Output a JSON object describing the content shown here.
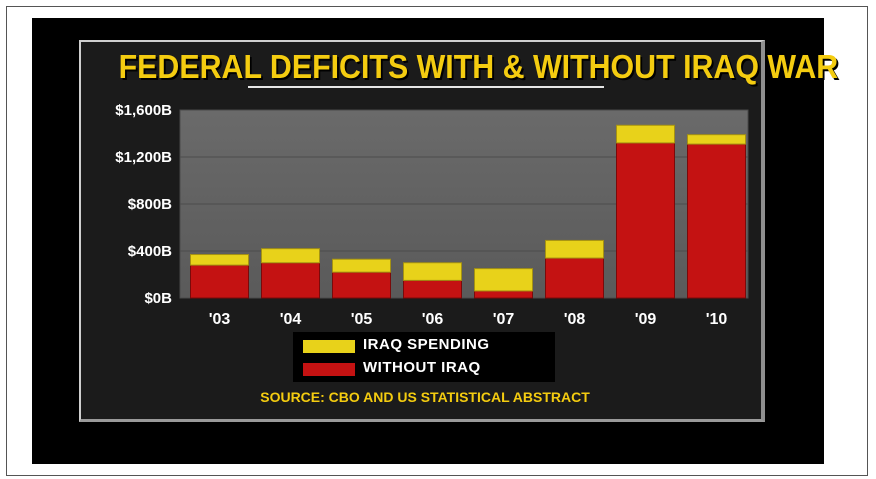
{
  "chart_data": {
    "type": "bar",
    "stacked": true,
    "title": "FEDERAL DEFICITS WITH & WITHOUT IRAQ WAR",
    "categories": [
      "'03",
      "'04",
      "'05",
      "'06",
      "'07",
      "'08",
      "'09",
      "'10"
    ],
    "series": [
      {
        "name": "WITHOUT IRAQ",
        "color": "#c41212",
        "values": [
          280,
          300,
          220,
          150,
          60,
          340,
          1320,
          1310
        ]
      },
      {
        "name": "IRAQ SPENDING",
        "color": "#e8d21a",
        "values": [
          90,
          120,
          110,
          150,
          190,
          150,
          150,
          80
        ]
      }
    ],
    "ylim": [
      0,
      1600
    ],
    "yticks": [
      0,
      400,
      800,
      1200,
      1600
    ],
    "ytick_labels": [
      "$0B",
      "$400B",
      "$800B",
      "$1,200B",
      "$1,600B"
    ],
    "grid": true,
    "legend": "bottom",
    "source": "SOURCE: CBO AND US STATISTICAL ABSTRACT"
  }
}
